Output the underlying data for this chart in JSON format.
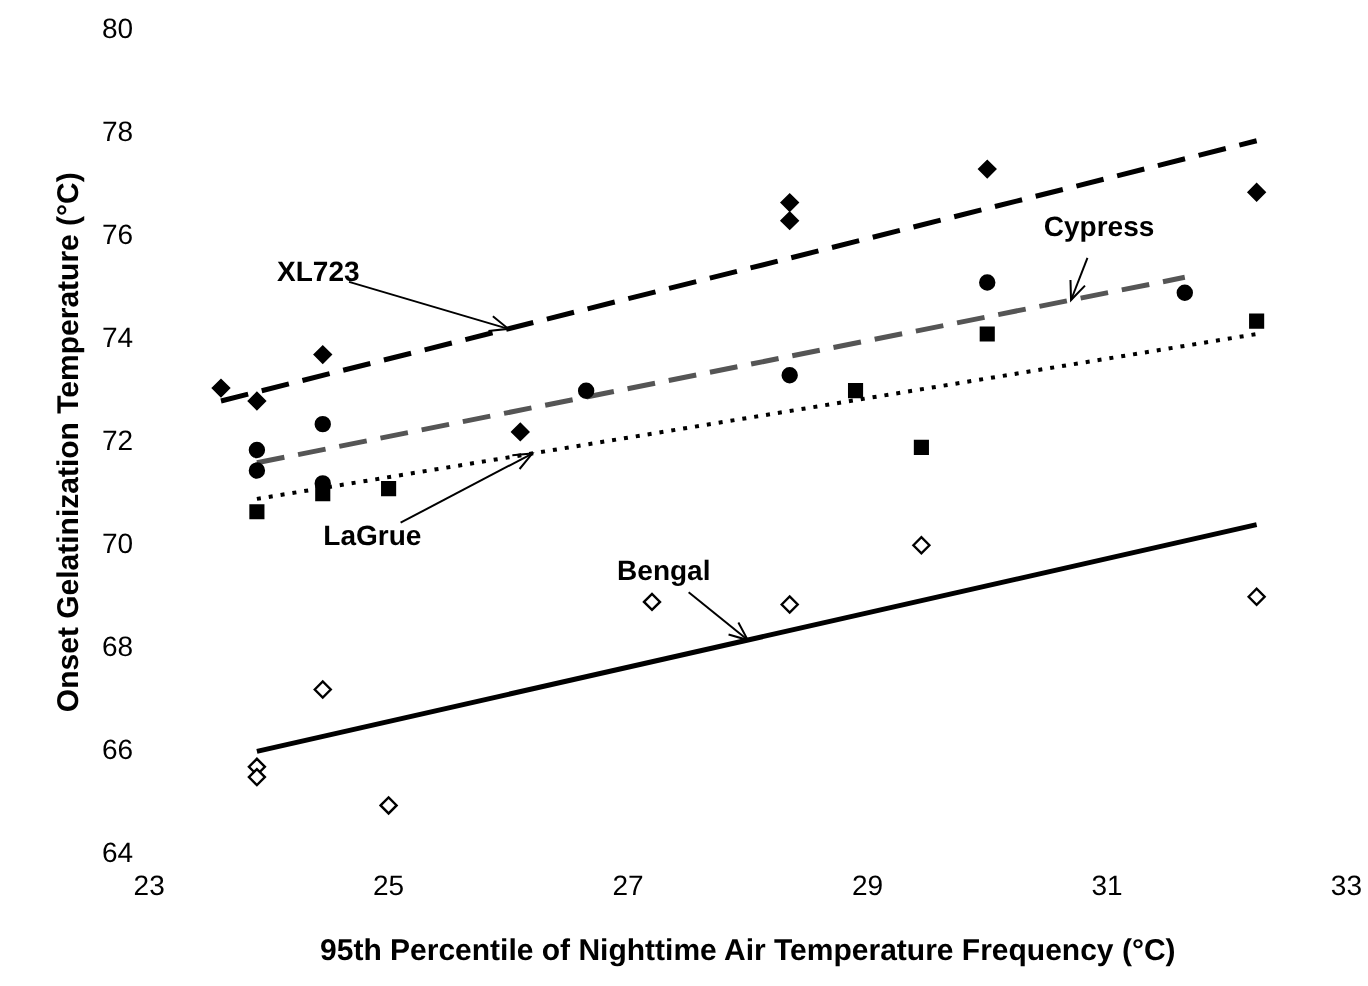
{
  "chart_data": {
    "type": "scatter",
    "xlabel": "95th Percentile of Nighttime Air Temperature Frequency (°C)",
    "ylabel": "Onset Gelatinization Temperature (°C)",
    "xlim": [
      23,
      33
    ],
    "xticks": [
      23,
      25,
      27,
      29,
      31,
      33
    ],
    "ylim": [
      64,
      80
    ],
    "yticks": [
      64,
      66,
      68,
      70,
      72,
      74,
      76,
      78,
      80
    ],
    "grid": false,
    "legend": false,
    "series": [
      {
        "type": "scatter",
        "color": "#000000",
        "marker": "diamond",
        "x": [
          23.6,
          23.9,
          24.45,
          26.1,
          28.35,
          28.35,
          30.0,
          32.25
        ],
        "values": [
          73.05,
          72.8,
          73.7,
          72.2,
          76.65,
          76.3,
          77.3,
          76.85
        ]
      },
      {
        "type": "scatter",
        "color": "#000000",
        "marker": "circle",
        "x": [
          23.9,
          23.9,
          24.45,
          24.45,
          26.65,
          28.35,
          30.0,
          31.65
        ],
        "values": [
          71.85,
          71.45,
          72.35,
          71.2,
          73.0,
          73.3,
          75.1,
          74.9
        ]
      },
      {
        "type": "scatter",
        "color": "#000000",
        "marker": "square",
        "x": [
          23.9,
          24.45,
          25.0,
          28.9,
          29.45,
          30.0,
          32.25
        ],
        "values": [
          70.65,
          71.0,
          71.1,
          73.0,
          71.9,
          74.1,
          74.35
        ]
      },
      {
        "type": "scatter",
        "color": "#ffffff",
        "marker": "diamond",
        "x": [
          23.9,
          23.9,
          24.45,
          25.0,
          27.2,
          28.35,
          29.45,
          32.25
        ],
        "values": [
          65.7,
          65.5,
          67.2,
          64.95,
          68.9,
          68.85,
          70.0,
          69.0
        ]
      },
      {
        "type": "line",
        "color": "#000000",
        "line_style": "dashed",
        "x": [
          23.6,
          32.25
        ],
        "values": [
          72.8,
          77.85
        ]
      },
      {
        "type": "line",
        "color": "#555555",
        "line_style": "dashed",
        "x": [
          23.9,
          31.65
        ],
        "values": [
          71.6,
          75.2
        ]
      },
      {
        "type": "line",
        "color": "#000000",
        "line_style": "dotted",
        "x": [
          23.9,
          32.25
        ],
        "values": [
          70.9,
          74.1
        ]
      },
      {
        "type": "line",
        "color": "#000000",
        "line_style": "solid",
        "x": [
          23.9,
          32.25
        ],
        "values": [
          66.0,
          70.4
        ]
      }
    ],
    "annotations": [
      {
        "text": "XL723",
        "x": 26.0,
        "y": 74.2
      },
      {
        "text": "Cypress",
        "x": 30.7,
        "y": 74.76
      },
      {
        "text": "LaGrue",
        "x": 26.2,
        "y": 71.78
      },
      {
        "text": "Bengal",
        "x": 28.0,
        "y": 68.16
      }
    ]
  }
}
